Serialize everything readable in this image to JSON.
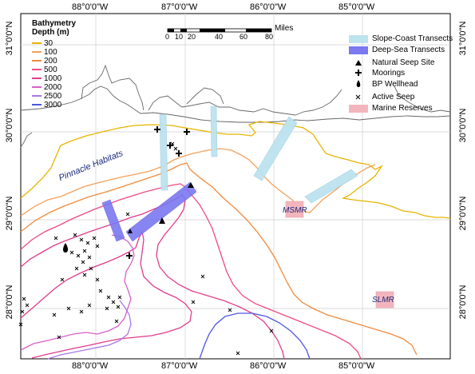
{
  "axes": {
    "top_lon": [
      "88°0'0\"W",
      "87°0'0\"W",
      "86°0'0\"W",
      "85°0'0\"W"
    ],
    "bottom_lon": [
      "88°0'0\"W",
      "87°0'0\"W",
      "86°0'0\"W",
      "85°0'0\"W"
    ],
    "left_lat": [
      "31°0'0\"N",
      "30°0'0\"N",
      "29°0'0\"N",
      "28°0'0\"N"
    ],
    "right_lat": [
      "31°0'0\"N",
      "30°0'0\"N",
      "29°0'0\"N",
      "28°0'0\"N"
    ]
  },
  "bathymetry_legend": {
    "title_line1": "Bathymetry",
    "title_line2": "Depth (m)",
    "items": [
      {
        "label": "30",
        "color": "#e8b400"
      },
      {
        "label": "100",
        "color": "#f5a05a"
      },
      {
        "label": "200",
        "color": "#f08a3c"
      },
      {
        "label": "500",
        "color": "#f04a84"
      },
      {
        "label": "1000",
        "color": "#e13c8c"
      },
      {
        "label": "2000",
        "color": "#d660c9"
      },
      {
        "label": "2500",
        "color": "#a978e6"
      },
      {
        "label": "3000",
        "color": "#4b56e0"
      }
    ]
  },
  "scale": {
    "ticks": [
      "0",
      "10",
      "20",
      "40",
      "60",
      "80"
    ],
    "unit": "Miles"
  },
  "feature_legend": [
    {
      "label": "Slope-Coast Transects",
      "icon": "slope-coast-transect-icon"
    },
    {
      "label": "Deep-Sea Transects",
      "icon": "deep-sea-transect-icon"
    },
    {
      "label": "Natural Seep Site",
      "icon": "triangle-icon"
    },
    {
      "label": "Moorings",
      "icon": "cross-icon"
    },
    {
      "label": "BP Wellhead",
      "icon": "drop-icon"
    },
    {
      "label": "Active Seep",
      "icon": "x-icon"
    },
    {
      "label": "Marine Reserves",
      "icon": "marine-reserve-icon"
    }
  ],
  "map_labels": {
    "pinnacle": "Pinnacle Habitats",
    "msmr": "MSMR",
    "slmr": "SLMR"
  },
  "colors": {
    "slope_coast": "#bde3ef",
    "deep_sea": "#7b78f0",
    "marine_reserve": "#f3b5bd",
    "coast": "#555555",
    "grid": "#cccccc"
  }
}
